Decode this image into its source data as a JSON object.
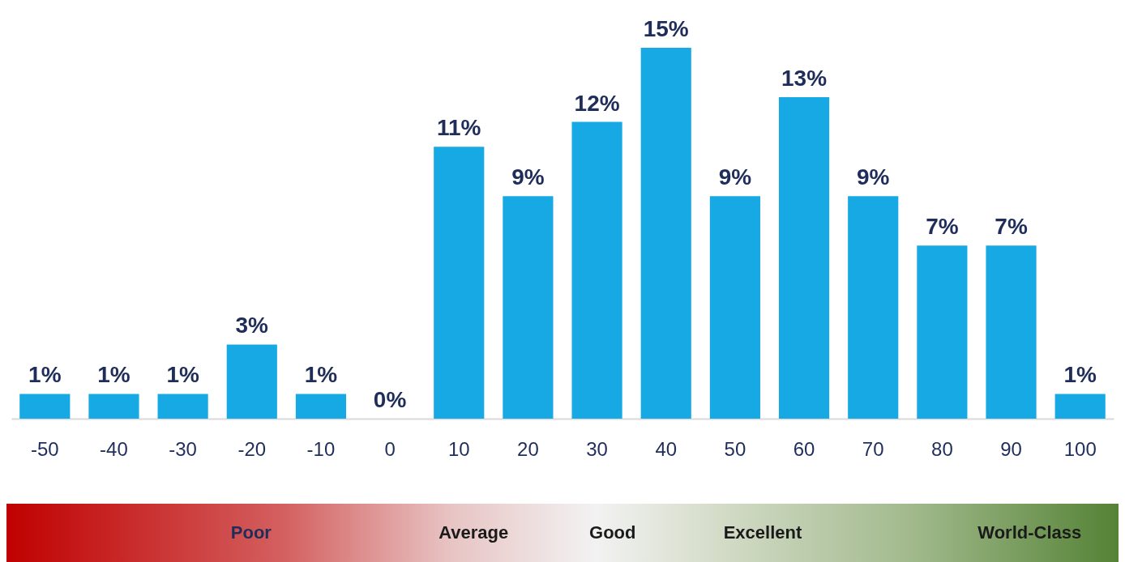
{
  "chart_data": {
    "type": "bar",
    "categories": [
      "-50",
      "-40",
      "-30",
      "-20",
      "-10",
      "0",
      "10",
      "20",
      "30",
      "40",
      "50",
      "60",
      "70",
      "80",
      "90",
      "100"
    ],
    "values": [
      1,
      1,
      1,
      3,
      1,
      0,
      11,
      9,
      12,
      15,
      9,
      13,
      9,
      7,
      7,
      1
    ],
    "value_labels": [
      "1%",
      "1%",
      "1%",
      "3%",
      "1%",
      "0%",
      "11%",
      "9%",
      "12%",
      "15%",
      "9%",
      "13%",
      "9%",
      "7%",
      "7%",
      "1%"
    ],
    "color": "#17a9e3",
    "tick_labels": "x",
    "grid": false,
    "annotations": [
      "Poor",
      "Average",
      "Good",
      "Excellent",
      "World-Class"
    ]
  }
}
